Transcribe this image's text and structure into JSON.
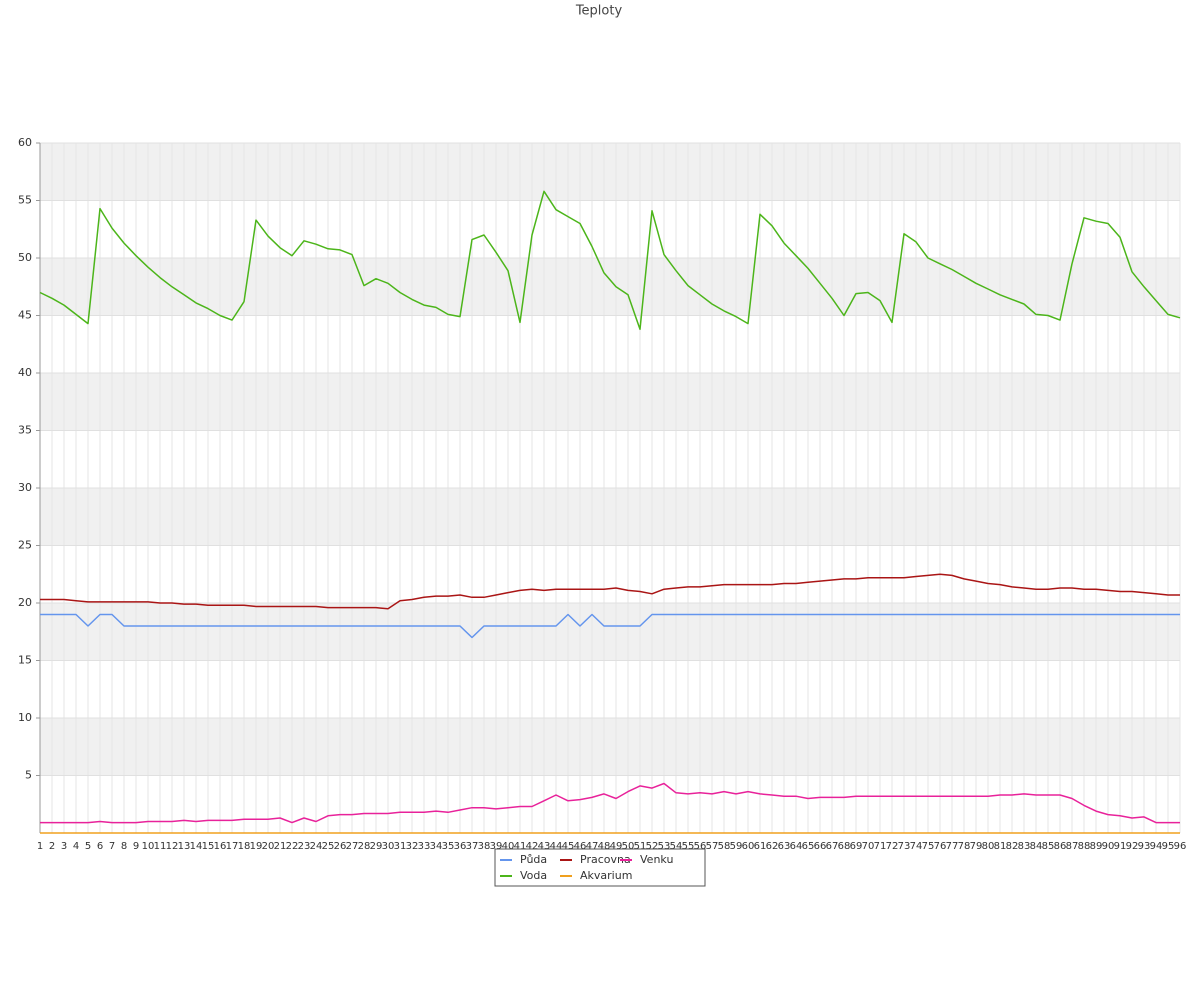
{
  "chart_data": {
    "type": "line",
    "title": "Teploty",
    "categories": [
      "1",
      "2",
      "3",
      "4",
      "5",
      "6",
      "7",
      "8",
      "9",
      "10",
      "11",
      "12",
      "13",
      "14",
      "15",
      "16",
      "17",
      "18",
      "19",
      "20",
      "21",
      "22",
      "23",
      "24",
      "25",
      "26",
      "27",
      "28",
      "29",
      "30",
      "31",
      "32",
      "33",
      "34",
      "35",
      "36",
      "37",
      "38",
      "39",
      "40",
      "41",
      "42",
      "43",
      "44",
      "45",
      "46",
      "47",
      "48",
      "49",
      "50",
      "51",
      "52",
      "53",
      "54",
      "55",
      "56",
      "57",
      "58",
      "59",
      "60",
      "61",
      "62",
      "63",
      "64",
      "65",
      "66",
      "67",
      "68",
      "69",
      "70",
      "71",
      "72",
      "73",
      "74",
      "75",
      "76",
      "77",
      "78",
      "79",
      "80",
      "81",
      "82",
      "83",
      "84",
      "85",
      "86",
      "87",
      "88",
      "89",
      "90",
      "91",
      "92",
      "93",
      "94",
      "95",
      "96"
    ],
    "series": [
      {
        "name": "Půda",
        "color": "#6495ed",
        "values": [
          19,
          19,
          19,
          19,
          18,
          19,
          19,
          18,
          18,
          18,
          18,
          18,
          18,
          18,
          18,
          18,
          18,
          18,
          18,
          18,
          18,
          18,
          18,
          18,
          18,
          18,
          18,
          18,
          18,
          18,
          18,
          18,
          18,
          18,
          18,
          18,
          17,
          18,
          18,
          18,
          18,
          18,
          18,
          18,
          19,
          18,
          19,
          18,
          18,
          18,
          18,
          19,
          19,
          19,
          19,
          19,
          19,
          19,
          19,
          19,
          19,
          19,
          19,
          19,
          19,
          19,
          19,
          19,
          19,
          19,
          19,
          19,
          19,
          19,
          19,
          19,
          19,
          19,
          19,
          19,
          19,
          19,
          19,
          19,
          19,
          19,
          19,
          19,
          19,
          19,
          19,
          19,
          19,
          19,
          19,
          19
        ]
      },
      {
        "name": "Voda",
        "color": "#4cb51a",
        "values": [
          47.0,
          46.5,
          45.9,
          45.1,
          44.3,
          54.3,
          52.6,
          51.3,
          50.2,
          49.2,
          48.3,
          47.5,
          46.8,
          46.1,
          45.6,
          45.0,
          44.6,
          46.2,
          53.3,
          51.9,
          50.9,
          50.2,
          51.5,
          51.2,
          50.8,
          50.7,
          50.3,
          47.6,
          48.2,
          47.8,
          47.0,
          46.4,
          45.9,
          45.7,
          45.1,
          44.9,
          51.6,
          52.0,
          50.5,
          48.9,
          44.4,
          52.0,
          55.8,
          54.2,
          53.6,
          53.0,
          51.0,
          48.7,
          47.5,
          46.8,
          43.8,
          54.1,
          50.3,
          48.9,
          47.6,
          46.8,
          46.0,
          45.4,
          44.9,
          44.3,
          53.8,
          52.8,
          51.3,
          50.2,
          49.1,
          47.8,
          46.5,
          45.0,
          46.9,
          47.0,
          46.3,
          44.4,
          52.1,
          51.4,
          50.0,
          49.5,
          49.0,
          48.4,
          47.8,
          47.3,
          46.8,
          46.4,
          46.0,
          45.1,
          45.0,
          44.6,
          49.5,
          53.5,
          53.2,
          53.0,
          51.8,
          48.8,
          47.5,
          46.3,
          45.1,
          44.8
        ]
      },
      {
        "name": "Pracovna",
        "color": "#aa1515",
        "values": [
          20.3,
          20.3,
          20.3,
          20.2,
          20.1,
          20.1,
          20.1,
          20.1,
          20.1,
          20.1,
          20.0,
          20.0,
          19.9,
          19.9,
          19.8,
          19.8,
          19.8,
          19.8,
          19.7,
          19.7,
          19.7,
          19.7,
          19.7,
          19.7,
          19.6,
          19.6,
          19.6,
          19.6,
          19.6,
          19.5,
          20.2,
          20.3,
          20.5,
          20.6,
          20.6,
          20.7,
          20.5,
          20.5,
          20.7,
          20.9,
          21.1,
          21.2,
          21.1,
          21.2,
          21.2,
          21.2,
          21.2,
          21.2,
          21.3,
          21.1,
          21.0,
          20.8,
          21.2,
          21.3,
          21.4,
          21.4,
          21.5,
          21.6,
          21.6,
          21.6,
          21.6,
          21.6,
          21.7,
          21.7,
          21.8,
          21.9,
          22.0,
          22.1,
          22.1,
          22.2,
          22.2,
          22.2,
          22.2,
          22.3,
          22.4,
          22.5,
          22.4,
          22.1,
          21.9,
          21.7,
          21.6,
          21.4,
          21.3,
          21.2,
          21.2,
          21.3,
          21.3,
          21.2,
          21.2,
          21.1,
          21.0,
          21.0,
          20.9,
          20.8,
          20.7,
          20.7
        ]
      },
      {
        "name": "Akvarium",
        "color": "#f0a01e",
        "values": [
          0,
          0,
          0,
          0,
          0,
          0,
          0,
          0,
          0,
          0,
          0,
          0,
          0,
          0,
          0,
          0,
          0,
          0,
          0,
          0,
          0,
          0,
          0,
          0,
          0,
          0,
          0,
          0,
          0,
          0,
          0,
          0,
          0,
          0,
          0,
          0,
          0,
          0,
          0,
          0,
          0,
          0,
          0,
          0,
          0,
          0,
          0,
          0,
          0,
          0,
          0,
          0,
          0,
          0,
          0,
          0,
          0,
          0,
          0,
          0,
          0,
          0,
          0,
          0,
          0,
          0,
          0,
          0,
          0,
          0,
          0,
          0,
          0,
          0,
          0,
          0,
          0,
          0,
          0,
          0,
          0,
          0,
          0,
          0,
          0,
          0,
          0,
          0,
          0,
          0,
          0,
          0,
          0,
          0,
          0,
          0
        ]
      },
      {
        "name": "Venku",
        "color": "#e8229a",
        "values": [
          0.9,
          0.9,
          0.9,
          0.9,
          0.9,
          1.0,
          0.9,
          0.9,
          0.9,
          1.0,
          1.0,
          1.0,
          1.1,
          1.0,
          1.1,
          1.1,
          1.1,
          1.2,
          1.2,
          1.2,
          1.3,
          0.9,
          1.3,
          1.0,
          1.5,
          1.6,
          1.6,
          1.7,
          1.7,
          1.7,
          1.8,
          1.8,
          1.8,
          1.9,
          1.8,
          2.0,
          2.2,
          2.2,
          2.1,
          2.2,
          2.3,
          2.3,
          2.8,
          3.3,
          2.8,
          2.9,
          3.1,
          3.4,
          3.0,
          3.6,
          4.1,
          3.9,
          4.3,
          3.5,
          3.4,
          3.5,
          3.4,
          3.6,
          3.4,
          3.6,
          3.4,
          3.3,
          3.2,
          3.2,
          3.0,
          3.1,
          3.1,
          3.1,
          3.2,
          3.2,
          3.2,
          3.2,
          3.2,
          3.2,
          3.2,
          3.2,
          3.2,
          3.2,
          3.2,
          3.2,
          3.3,
          3.3,
          3.4,
          3.3,
          3.3,
          3.3,
          3.0,
          2.4,
          1.9,
          1.6,
          1.5,
          1.3,
          1.4,
          0.9,
          0.9,
          0.9
        ]
      }
    ],
    "ylim": [
      0,
      60
    ],
    "yticks": [
      5,
      10,
      15,
      20,
      25,
      30,
      35,
      40,
      45,
      50,
      55,
      60
    ],
    "grid": true
  }
}
